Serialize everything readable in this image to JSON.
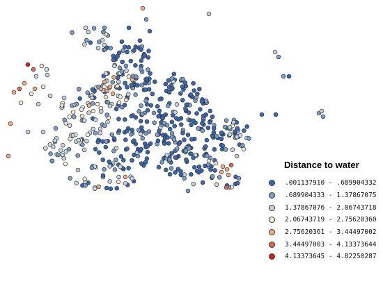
{
  "legend": {
    "title": "Distance to water",
    "classes": [
      {
        "label": ".001137910 - .689904332",
        "color": "#3a67ad"
      },
      {
        "label": ".689904333 - 1.37867075",
        "color": "#7b9ec8"
      },
      {
        "label": "1.37867076 - 2.06743718",
        "color": "#c6d5e3"
      },
      {
        "label": "2.06743719 - 2.75620360",
        "color": "#f0ead6"
      },
      {
        "label": "2.75620361 - 3.44497002",
        "color": "#f0ab88"
      },
      {
        "label": "3.44497003 - 4.13373644",
        "color": "#e0684e"
      },
      {
        "label": "4.13373645 - 4.82250287",
        "color": "#cc2222"
      }
    ]
  }
}
